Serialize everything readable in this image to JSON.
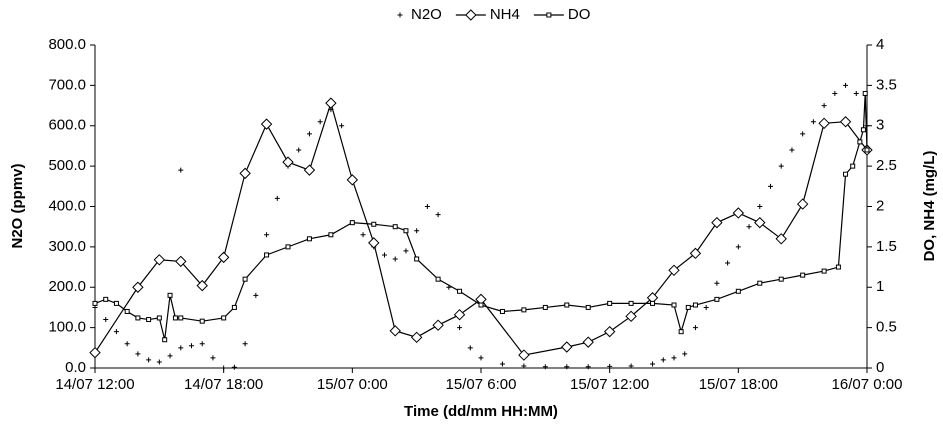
{
  "chart_data": {
    "type": "line",
    "xlabel": "Time  (dd/mm HH:MM)",
    "ylabel": "N2O (ppmv)",
    "y2label": "DO, NH4 (mg/L)",
    "xlim": [
      "14/07 12:00",
      "16/07 0:00"
    ],
    "xticks": [
      "14/07 12:00",
      "14/07 18:00",
      "15/07 0:00",
      "15/07 6:00",
      "15/07 12:00",
      "15/07 18:00",
      "16/07 0:00"
    ],
    "ylim": [
      0,
      800
    ],
    "yticks": [
      {
        "value": 0,
        "label": "0.0"
      },
      {
        "value": 100,
        "label": "100.0"
      },
      {
        "value": 200,
        "label": "200.0"
      },
      {
        "value": 300,
        "label": "300.0"
      },
      {
        "value": 400,
        "label": "400.0"
      },
      {
        "value": 500,
        "label": "500.0"
      },
      {
        "value": 600,
        "label": "600.0"
      },
      {
        "value": 700,
        "label": "700.0"
      },
      {
        "value": 800,
        "label": "800.0"
      }
    ],
    "y2lim": [
      0,
      4
    ],
    "y2ticks": [
      0,
      0.5,
      1,
      1.5,
      2,
      2.5,
      3,
      3.5,
      4
    ],
    "legend": "top",
    "series": [
      {
        "name": "N2O",
        "color": "#000000",
        "marker": "plus",
        "line": false,
        "x": [
          "14/07 12:00",
          "14/07 12:30",
          "14/07 13:00",
          "14/07 13:30",
          "14/07 14:00",
          "14/07 14:30",
          "14/07 15:00",
          "14/07 15:30",
          "14/07 16:00",
          "14/07 16:00",
          "14/07 16:30",
          "14/07 17:00",
          "14/07 17:30",
          "14/07 18:00",
          "14/07 18:30",
          "14/07 19:00",
          "14/07 19:30",
          "14/07 20:00",
          "14/07 20:30",
          "14/07 21:00",
          "14/07 21:30",
          "14/07 22:00",
          "14/07 22:30",
          "14/07 23:00",
          "14/07 23:30",
          "15/07 0:00",
          "15/07 0:30",
          "15/07 1:00",
          "15/07 1:30",
          "15/07 2:00",
          "15/07 2:30",
          "15/07 3:00",
          "15/07 3:30",
          "15/07 4:00",
          "15/07 4:30",
          "15/07 5:00",
          "15/07 5:30",
          "15/07 6:00",
          "15/07 7:00",
          "15/07 8:00",
          "15/07 9:00",
          "15/07 10:00",
          "15/07 11:00",
          "15/07 12:00",
          "15/07 13:00",
          "15/07 14:00",
          "15/07 14:30",
          "15/07 15:00",
          "15/07 15:30",
          "15/07 16:00",
          "15/07 16:30",
          "15/07 17:00",
          "15/07 17:30",
          "15/07 18:00",
          "15/07 18:30",
          "15/07 19:00",
          "15/07 19:30",
          "15/07 20:00",
          "15/07 20:30",
          "15/07 21:00",
          "15/07 21:30",
          "15/07 22:00",
          "15/07 22:30",
          "15/07 23:00",
          "15/07 23:30",
          "16/07 0:00"
        ],
        "values": [
          150,
          120,
          90,
          60,
          35,
          20,
          15,
          30,
          50,
          490,
          55,
          60,
          25,
          0,
          2,
          60,
          180,
          330,
          420,
          500,
          540,
          580,
          610,
          640,
          600,
          360,
          330,
          300,
          280,
          270,
          290,
          340,
          400,
          380,
          200,
          100,
          50,
          25,
          10,
          5,
          3,
          3,
          3,
          4,
          5,
          10,
          20,
          25,
          35,
          100,
          150,
          210,
          260,
          300,
          350,
          400,
          450,
          500,
          540,
          580,
          610,
          650,
          680,
          700,
          680,
          600
        ]
      },
      {
        "name": "NH4",
        "color": "#000000",
        "marker": "diamond",
        "line": true,
        "axis": "y2",
        "x": [
          "14/07 12:00",
          "14/07 14:00",
          "14/07 15:00",
          "14/07 16:00",
          "14/07 17:00",
          "14/07 18:00",
          "14/07 19:00",
          "14/07 20:00",
          "14/07 21:00",
          "14/07 22:00",
          "14/07 23:00",
          "15/07 0:00",
          "15/07 1:00",
          "15/07 2:00",
          "15/07 3:00",
          "15/07 4:00",
          "15/07 5:00",
          "15/07 6:00",
          "15/07 8:00",
          "15/07 10:00",
          "15/07 11:00",
          "15/07 12:00",
          "15/07 13:00",
          "15/07 14:00",
          "15/07 15:00",
          "15/07 16:00",
          "15/07 17:00",
          "15/07 18:00",
          "15/07 19:00",
          "15/07 20:00",
          "15/07 21:00",
          "15/07 22:00",
          "15/07 23:00",
          "16/07 0:00"
        ],
        "values": [
          0.19,
          1.0,
          1.34,
          1.32,
          1.02,
          1.37,
          2.41,
          3.02,
          2.55,
          2.45,
          3.28,
          2.33,
          1.55,
          0.46,
          0.38,
          0.53,
          0.66,
          0.85,
          0.16,
          0.26,
          0.32,
          0.45,
          0.64,
          0.87,
          1.21,
          1.42,
          1.8,
          1.92,
          1.8,
          1.6,
          2.03,
          3.03,
          3.05,
          2.7
        ]
      },
      {
        "name": "DO",
        "color": "#000000",
        "marker": "square",
        "line": true,
        "axis": "y2",
        "x": [
          "14/07 12:00",
          "14/07 12:30",
          "14/07 13:00",
          "14/07 13:30",
          "14/07 14:00",
          "14/07 14:30",
          "14/07 15:00",
          "14/07 15:15",
          "14/07 15:30",
          "14/07 15:45",
          "14/07 16:00",
          "14/07 17:00",
          "14/07 18:00",
          "14/07 18:30",
          "14/07 19:00",
          "14/07 20:00",
          "14/07 21:00",
          "14/07 22:00",
          "14/07 23:00",
          "15/07 0:00",
          "15/07 1:00",
          "15/07 2:00",
          "15/07 2:30",
          "15/07 3:00",
          "15/07 4:00",
          "15/07 5:00",
          "15/07 6:00",
          "15/07 7:00",
          "15/07 8:00",
          "15/07 9:00",
          "15/07 10:00",
          "15/07 11:00",
          "15/07 12:00",
          "15/07 13:00",
          "15/07 14:00",
          "15/07 15:00",
          "15/07 15:20",
          "15/07 15:40",
          "15/07 16:00",
          "15/07 17:00",
          "15/07 18:00",
          "15/07 19:00",
          "15/07 20:00",
          "15/07 21:00",
          "15/07 22:00",
          "15/07 22:40",
          "15/07 23:00",
          "15/07 23:20",
          "15/07 23:40",
          "15/07 23:50",
          "15/07 23:55",
          "16/07 0:00"
        ],
        "values": [
          0.8,
          0.85,
          0.8,
          0.7,
          0.62,
          0.6,
          0.62,
          0.35,
          0.9,
          0.62,
          0.62,
          0.58,
          0.62,
          0.75,
          1.1,
          1.4,
          1.5,
          1.6,
          1.65,
          1.8,
          1.78,
          1.75,
          1.7,
          1.35,
          1.1,
          0.95,
          0.78,
          0.7,
          0.72,
          0.75,
          0.78,
          0.75,
          0.8,
          0.8,
          0.8,
          0.78,
          0.45,
          0.75,
          0.78,
          0.85,
          0.95,
          1.05,
          1.1,
          1.15,
          1.2,
          1.25,
          2.4,
          2.5,
          2.8,
          2.95,
          3.4,
          2.7
        ]
      }
    ]
  }
}
